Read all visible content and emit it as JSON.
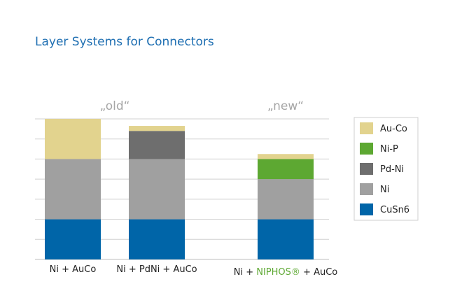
{
  "chart_data": {
    "type": "bar",
    "stacked": true,
    "title": "Layer Systems for Connectors",
    "group_labels": [
      {
        "text": "„old“",
        "categories": [
          0,
          1
        ]
      },
      {
        "text": "„new“",
        "categories": [
          2
        ]
      }
    ],
    "categories": [
      "Ni + AuCo",
      "Ni + PdNi + AuCo",
      "Ni + NIPHOS® + AuCo"
    ],
    "category_label_parts": [
      [
        {
          "text": "Ni + AuCo",
          "color": "#222222"
        }
      ],
      [
        {
          "text": "Ni + PdNi + AuCo",
          "color": "#222222"
        }
      ],
      [
        {
          "text": "Ni + ",
          "color": "#222222"
        },
        {
          "text": "NIPHOS®",
          "color": "#5da832"
        },
        {
          "text": " + AuCo",
          "color": "#222222"
        }
      ]
    ],
    "series": [
      {
        "name": "CuSn6",
        "color": "#0065a8",
        "values": [
          2,
          2,
          2
        ]
      },
      {
        "name": "Ni",
        "color": "#a0a0a0",
        "values": [
          3,
          3,
          2
        ]
      },
      {
        "name": "Pd-Ni",
        "color": "#6e6e6e",
        "values": [
          0,
          1.4,
          0
        ]
      },
      {
        "name": "Ni-P",
        "color": "#5da832",
        "values": [
          0,
          0,
          1
        ]
      },
      {
        "name": "Au-Co",
        "color": "#e2d38e",
        "values": [
          2,
          0.25,
          0.25
        ]
      }
    ],
    "ylim": [
      0,
      7
    ],
    "grid": true,
    "legend_position": "right",
    "legend_order": [
      "Au-Co",
      "Ni-P",
      "Pd-Ni",
      "Ni",
      "CuSn6"
    ]
  }
}
